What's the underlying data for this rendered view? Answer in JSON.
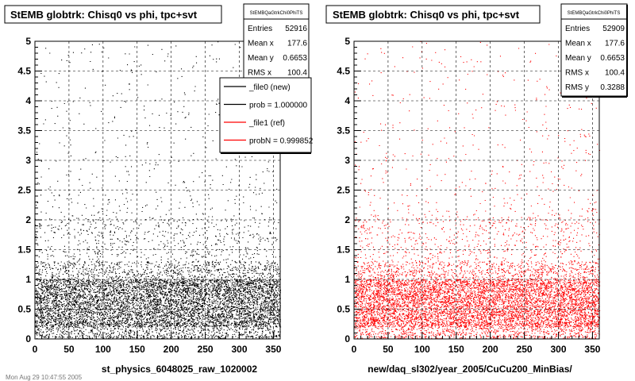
{
  "footer_text": "Mon Aug 29 10:47:55 2005",
  "chart_data": [
    {
      "type": "scatter",
      "title": "StEMB globtrk: Chisq0 vs phi, tpc+svt",
      "xlabel": "st_physics_6048025_raw_1020002",
      "ylabel": "",
      "xlim": [
        0,
        360
      ],
      "ylim": [
        0,
        5
      ],
      "x_ticks": [
        "0",
        "50",
        "100",
        "150",
        "200",
        "250",
        "300",
        "350"
      ],
      "y_ticks": [
        "0",
        "0.5",
        "1",
        "1.5",
        "2",
        "2.5",
        "3",
        "3.5",
        "4",
        "4.5",
        "5"
      ],
      "grid": true,
      "marker_color": "#000000",
      "stats": {
        "name": "StEMBQaGtrkChi0PhiTS",
        "rows": [
          {
            "label": "Entries",
            "value": "52916"
          },
          {
            "label": "Mean x",
            "value": "177.6"
          },
          {
            "label": "Mean y",
            "value": "0.6653"
          },
          {
            "label": "RMS x",
            "value": "100.4"
          }
        ]
      },
      "legend": {
        "placement": "top-right",
        "entries": [
          {
            "label": "_file0 (new)",
            "color": "#000000"
          },
          {
            "label": "prob = 1.000000",
            "color": "#000000"
          },
          {
            "label": "_file1 (ref)",
            "color": "#ff0000"
          },
          {
            "label": "probN = 0.999852",
            "color": "#ff0000"
          }
        ]
      },
      "density_profile": [
        {
          "y": [
            0,
            0.2
          ],
          "fraction": 0.08
        },
        {
          "y": [
            0.2,
            0.3
          ],
          "fraction": 0.1
        },
        {
          "y": [
            0.3,
            1.0
          ],
          "fraction": 0.62
        },
        {
          "y": [
            1.0,
            1.3
          ],
          "fraction": 0.09
        },
        {
          "y": [
            1.3,
            2.0
          ],
          "fraction": 0.06
        },
        {
          "y": [
            2.0,
            5.0
          ],
          "fraction": 0.05
        }
      ]
    },
    {
      "type": "scatter",
      "title": "StEMB globtrk: Chisq0 vs phi, tpc+svt",
      "xlabel": "new/daq_sl302/year_2005/CuCu200_MinBias/",
      "ylabel": "",
      "xlim": [
        0,
        360
      ],
      "ylim": [
        0,
        5
      ],
      "x_ticks": [
        "0",
        "50",
        "100",
        "150",
        "200",
        "250",
        "300",
        "350"
      ],
      "y_ticks": [
        "0",
        "0.5",
        "1",
        "1.5",
        "2",
        "2.5",
        "3",
        "3.5",
        "4",
        "4.5",
        "5"
      ],
      "grid": true,
      "marker_color": "#ff0000",
      "stats": {
        "name": "StEMBQaGtrkChi0PhiTS",
        "rows": [
          {
            "label": "Entries",
            "value": "52909"
          },
          {
            "label": "Mean x",
            "value": "177.6"
          },
          {
            "label": "Mean y",
            "value": "0.6653"
          },
          {
            "label": "RMS x",
            "value": "100.4"
          },
          {
            "label": "RMS y",
            "value": "0.3288"
          }
        ]
      },
      "density_profile": [
        {
          "y": [
            0,
            0.2
          ],
          "fraction": 0.08
        },
        {
          "y": [
            0.2,
            0.3
          ],
          "fraction": 0.1
        },
        {
          "y": [
            0.3,
            1.0
          ],
          "fraction": 0.62
        },
        {
          "y": [
            1.0,
            1.3
          ],
          "fraction": 0.09
        },
        {
          "y": [
            1.3,
            2.0
          ],
          "fraction": 0.06
        },
        {
          "y": [
            2.0,
            5.0
          ],
          "fraction": 0.05
        }
      ]
    }
  ]
}
